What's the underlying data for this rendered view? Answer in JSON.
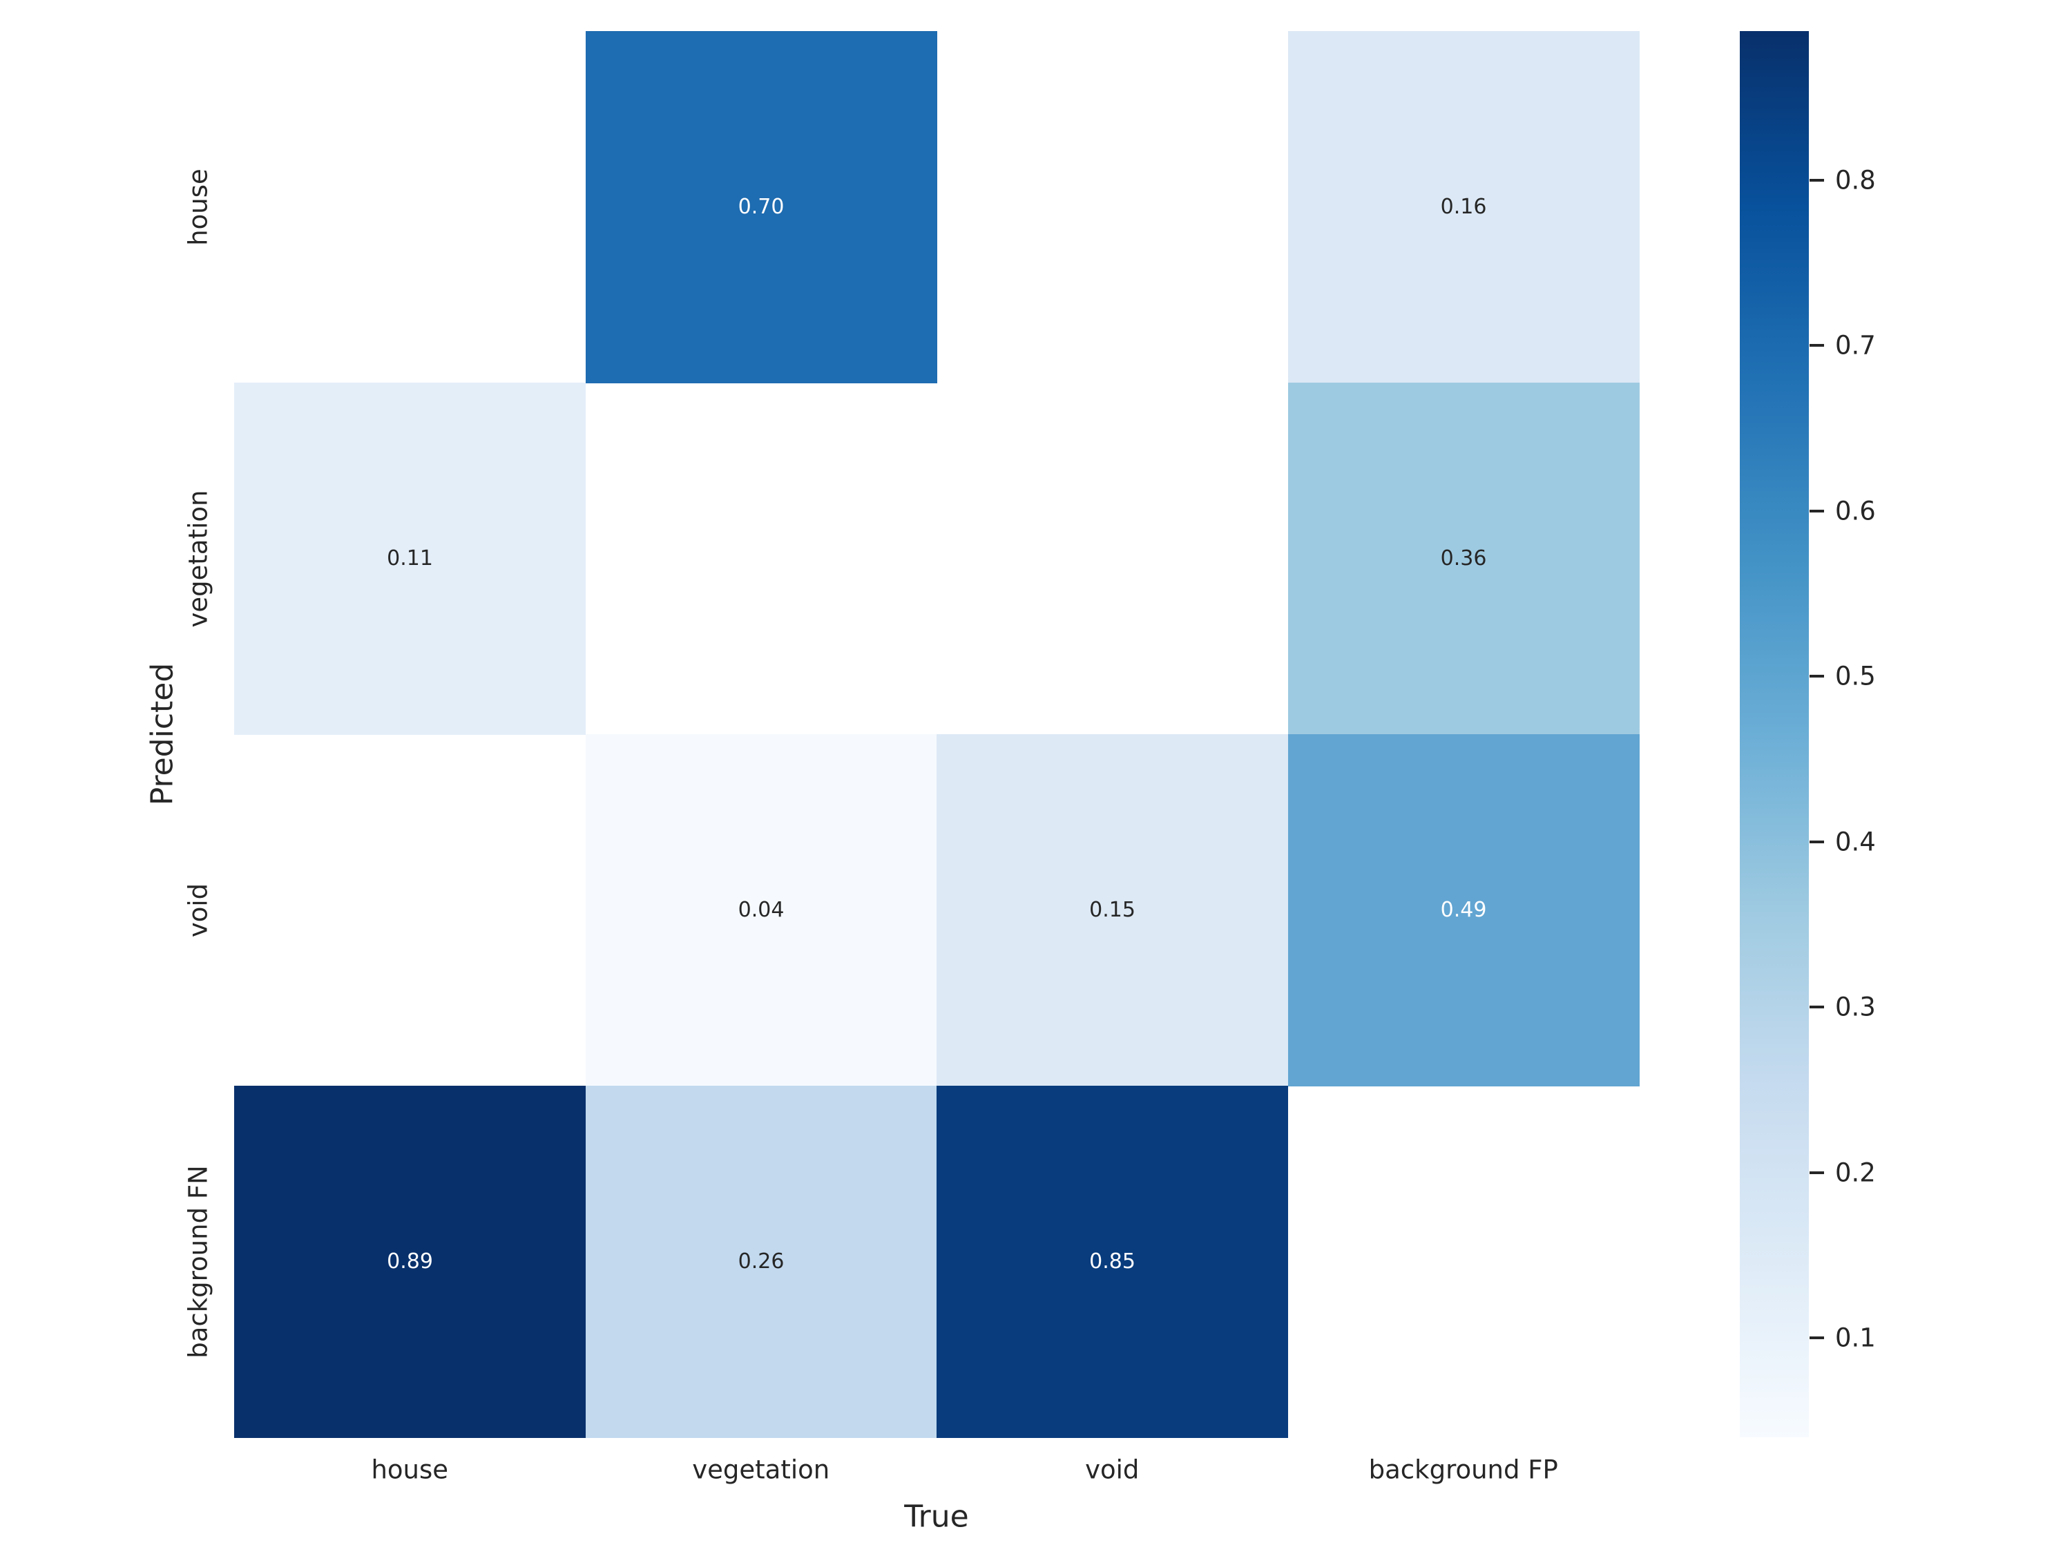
{
  "figure": {
    "background_color": "#ffffff",
    "text_color": "#262626"
  },
  "chart_data": {
    "type": "heatmap",
    "title": "",
    "xlabel": "True",
    "ylabel": "Predicted",
    "x_categories": [
      "house",
      "vegetation",
      "void",
      "background FP"
    ],
    "y_categories": [
      "house",
      "vegetation",
      "void",
      "background FN"
    ],
    "matrix": [
      [
        null,
        0.7,
        null,
        0.16
      ],
      [
        0.11,
        null,
        null,
        0.36
      ],
      [
        null,
        0.04,
        0.15,
        0.49
      ],
      [
        0.89,
        0.26,
        0.85,
        null
      ]
    ],
    "annotations": [
      [
        "",
        "0.70",
        "",
        "0.16"
      ],
      [
        "0.11",
        "",
        "",
        "0.36"
      ],
      [
        "",
        "0.04",
        "0.15",
        "0.49"
      ],
      [
        "0.89",
        "0.26",
        "0.85",
        ""
      ]
    ],
    "cell_colors": [
      [
        null,
        "#1e6cb1",
        null,
        "#dce8f5"
      ],
      [
        "#e4eef9",
        null,
        null,
        "#9ecae1"
      ],
      [
        null,
        "#f6fafe",
        "#dde9f5",
        "#62a5d2"
      ],
      [
        "#08306b",
        "#c2d9ee",
        "#083c7d",
        null
      ]
    ],
    "annotation_text_colors": [
      [
        null,
        "#ffffff",
        null,
        "#262626"
      ],
      [
        "#262626",
        null,
        null,
        "#262626"
      ],
      [
        null,
        "#262626",
        "#262626",
        "#ffffff"
      ],
      [
        "#ffffff",
        "#262626",
        "#ffffff",
        null
      ]
    ],
    "masked_cell_color": "#ffffff",
    "grid": false,
    "legend": null,
    "colormap": {
      "name": "Blues",
      "stops_top_to_bottom": [
        "#08306b",
        "#08519c",
        "#2171b5",
        "#4292c6",
        "#6baed6",
        "#9ecae1",
        "#c6dbef",
        "#deebf7",
        "#f7fbff"
      ]
    },
    "colorbar": {
      "vmin": 0.04,
      "vmax": 0.89,
      "tick_values": [
        0.8,
        0.7,
        0.6,
        0.5,
        0.4,
        0.3,
        0.2,
        0.1
      ],
      "tick_labels": [
        "0.8",
        "0.7",
        "0.6",
        "0.5",
        "0.4",
        "0.3",
        "0.2",
        "0.1"
      ]
    }
  }
}
